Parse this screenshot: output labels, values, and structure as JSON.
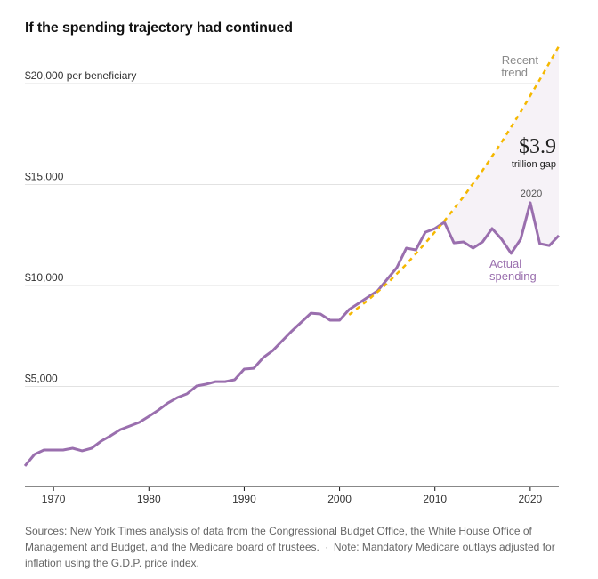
{
  "title": "If the spending trajectory had continued",
  "colors": {
    "actual": "#9a6fae",
    "trend": "#f5b800",
    "gap_fill": "#f6f2f7",
    "grid": "#e2e2e2",
    "axis": "#121212"
  },
  "chart_data": {
    "type": "line",
    "title": "If the spending trajectory had continued",
    "xlabel": "",
    "ylabel": "per beneficiary",
    "xlim": [
      1967,
      2023
    ],
    "ylim": [
      0,
      21850
    ],
    "grid": true,
    "y_ticks": [
      {
        "value": 5000,
        "label": "$5,000"
      },
      {
        "value": 10000,
        "label": "$10,000"
      },
      {
        "value": 15000,
        "label": "$15,000"
      },
      {
        "value": 20000,
        "label": "$20,000 per beneficiary"
      }
    ],
    "x_ticks": [
      {
        "value": 1970,
        "label": "1970"
      },
      {
        "value": 1980,
        "label": "1980"
      },
      {
        "value": 1990,
        "label": "1990"
      },
      {
        "value": 2000,
        "label": "2000"
      },
      {
        "value": 2010,
        "label": "2010"
      },
      {
        "value": 2020,
        "label": "2020"
      }
    ],
    "series": [
      {
        "name": "Actual spending",
        "style": "solid",
        "x": [
          1967,
          1968,
          1969,
          1970,
          1971,
          1972,
          1973,
          1974,
          1975,
          1976,
          1977,
          1978,
          1979,
          1980,
          1981,
          1982,
          1983,
          1984,
          1985,
          1986,
          1987,
          1988,
          1989,
          1990,
          1991,
          1992,
          1993,
          1994,
          1995,
          1996,
          1997,
          1998,
          1999,
          2000,
          2001,
          2002,
          2003,
          2004,
          2005,
          2006,
          2007,
          2008,
          2009,
          2010,
          2011,
          2012,
          2013,
          2014,
          2015,
          2016,
          2017,
          2018,
          2019,
          2020,
          2021,
          2022,
          2023
        ],
        "values": [
          1060,
          1630,
          1850,
          1850,
          1850,
          1940,
          1810,
          1940,
          2290,
          2560,
          2860,
          3040,
          3220,
          3520,
          3830,
          4180,
          4450,
          4630,
          5020,
          5110,
          5240,
          5240,
          5330,
          5860,
          5900,
          6430,
          6780,
          7270,
          7750,
          8190,
          8630,
          8590,
          8280,
          8280,
          8810,
          9120,
          9430,
          9740,
          10310,
          10880,
          11850,
          11760,
          12640,
          12820,
          13130,
          12110,
          12160,
          11850,
          12160,
          12820,
          12290,
          11590,
          12290,
          14100,
          12070,
          11980,
          12470
        ]
      },
      {
        "name": "Recent trend",
        "style": "dashed",
        "x": [
          2001,
          2003,
          2005,
          2007,
          2009,
          2011,
          2013,
          2015,
          2017,
          2019,
          2021,
          2023
        ],
        "values": [
          8550,
          9280,
          10100,
          11050,
          12100,
          13200,
          14400,
          15700,
          17100,
          18600,
          20200,
          21850
        ]
      }
    ],
    "annotations": [
      {
        "text": "Recent trend",
        "lines": [
          "Recent",
          "trend"
        ],
        "series": "Recent trend"
      },
      {
        "text": "Actual spending",
        "lines": [
          "Actual",
          "spending"
        ],
        "series": "Actual spending"
      },
      {
        "text": "2020",
        "x": 2020
      },
      {
        "text": "$3.9 trillion gap",
        "big": "$3.9",
        "small": "trillion gap"
      }
    ],
    "legend": "none"
  },
  "footer": {
    "sources": "Sources: New York Times analysis of data from the Congressional Budget Office, the White House Office of Management and Budget, and the Medicare board of trustees.",
    "separator": "·",
    "note": "Note: Mandatory Medicare outlays adjusted for inflation using the G.D.P. price index."
  }
}
